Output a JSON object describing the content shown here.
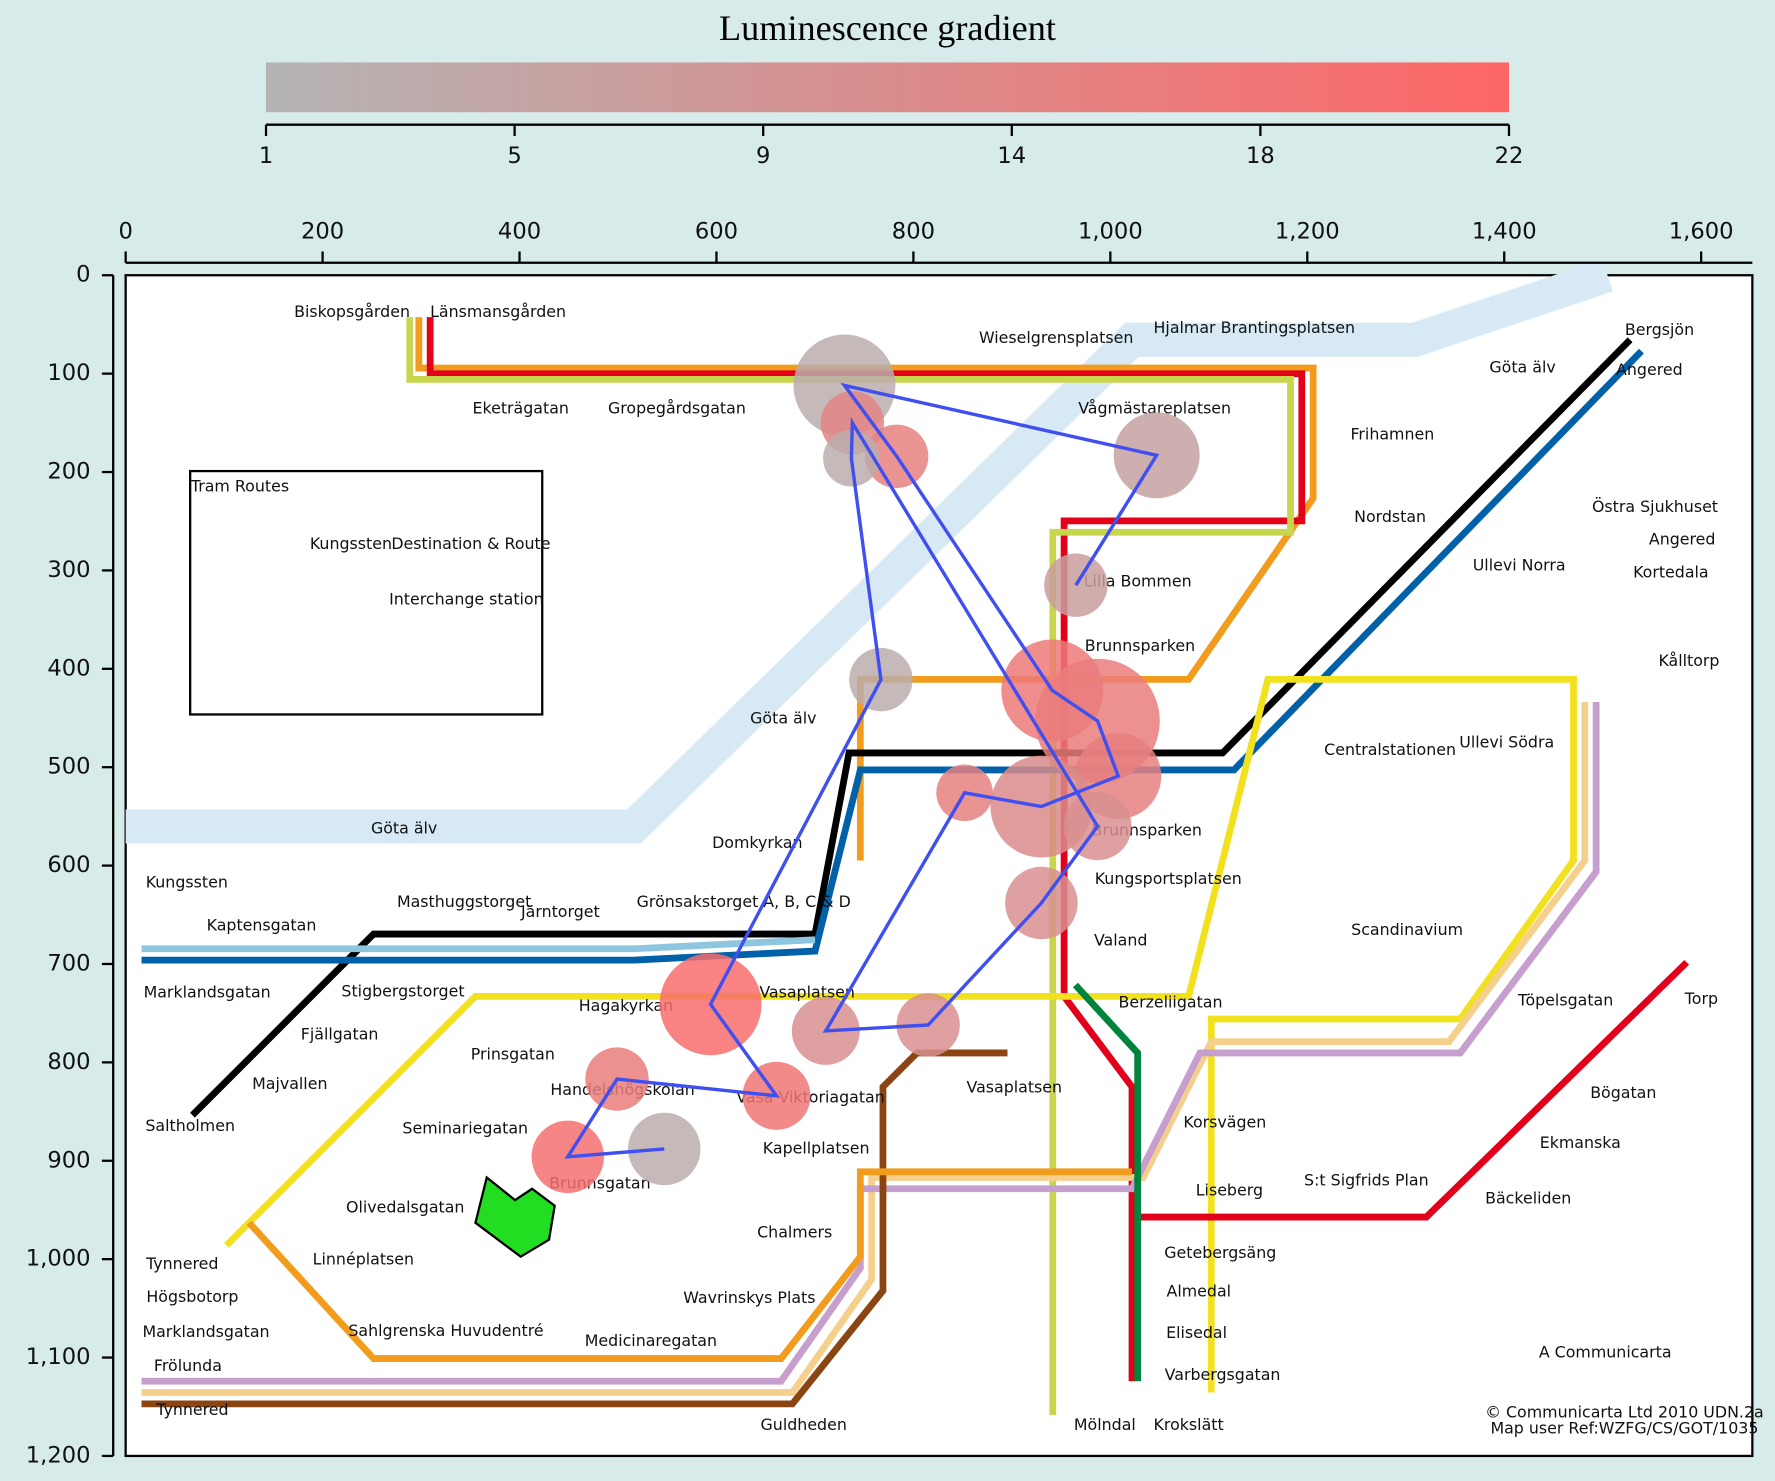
{
  "chart_data": {
    "type": "scatter",
    "title": "Luminescence gradient",
    "x": [
      965,
      1047,
      730,
      783,
      941,
      987,
      1008,
      930,
      852,
      711,
      815,
      930,
      987,
      738,
      737,
      767,
      594,
      661,
      499,
      449,
      547
    ],
    "y": [
      315,
      183,
      112,
      184,
      422,
      453,
      509,
      540,
      526,
      768,
      762,
      638,
      560,
      150,
      186,
      411,
      741,
      834,
      817,
      896,
      888
    ],
    "sizes": [
      56,
      76,
      90,
      56,
      90,
      110,
      76,
      90,
      50,
      60,
      56,
      64,
      60,
      56,
      50,
      56,
      90,
      60,
      56,
      64,
      64
    ],
    "values": [
      7,
      6,
      3,
      15,
      17,
      16,
      15,
      12,
      15,
      11,
      11,
      11,
      11,
      14,
      3,
      3,
      20,
      18,
      16,
      19,
      3
    ],
    "line_color": "#3f4ff0",
    "colormap": [
      "#b4b4b4",
      "#ff6666"
    ],
    "clim": [
      1,
      22
    ],
    "cticks": [
      1,
      {
        "value": 5.2,
        "label": "5"
      },
      {
        "value": 9.4,
        "label": "9"
      },
      {
        "value": 13.6,
        "label": "14"
      },
      {
        "value": 17.8,
        "label": "18"
      },
      22
    ],
    "xlim": [
      0,
      1652
    ],
    "xticks": [
      0,
      200,
      400,
      600,
      800,
      {
        "value": 1000,
        "label": "1,000"
      },
      {
        "value": 1200,
        "label": "1,200"
      },
      {
        "value": 1400,
        "label": "1,400"
      },
      {
        "value": 1600,
        "label": "1,600"
      }
    ],
    "ylim": [
      0,
      1200
    ],
    "yticks": [
      0,
      100,
      200,
      300,
      400,
      500,
      600,
      700,
      800,
      900,
      {
        "value": 1000,
        "label": "1,000"
      },
      {
        "value": 1100,
        "label": "1,100"
      },
      {
        "value": 1200,
        "label": "1,200"
      }
    ],
    "y_inverted": true
  },
  "map": {
    "labels": [
      "Biskopsgården",
      "Länsmansgården",
      "Eketrägatan",
      "Gropegårdsgatan",
      "Wieselgrensplatsen",
      "Hjalmar Brantingsplatsen",
      "Vågmästareplatsen",
      "Frihamnen",
      "Nordstan",
      "Lilla Bommen",
      "Brunnsparken",
      "Centralstationen",
      "Brunnsparken",
      "Kungsportsplatsen",
      "Valand",
      "Berzeliigatan",
      "Korsvägen",
      "Liseberg",
      "S:t Sigfrids Plan",
      "Bäckeliden",
      "Ekmanska",
      "Bögatan",
      "Töpelsgatan",
      "Scandinavium",
      "Ullevi Norra",
      "Ullevi Södra",
      "Östra Sjukhuset",
      "Angered",
      "Kortedala",
      "Kålltorp",
      "Bergsjön",
      "Angered",
      "Torp",
      "Getebergsäng",
      "Almedal",
      "Elisedal",
      "Varbergsgatan",
      "Mölndal",
      "Krokslätt",
      "Guldheden",
      "Domkyrkan",
      "Grönsakstorget A, B, C & D",
      "Vasaplatsen",
      "Vasaplatsen",
      "Vasa Viktoriagatan",
      "Kapellplatsen",
      "Chalmers",
      "Wavrinskys Plats",
      "Medicinaregatan",
      "Sahlgrenska Huvudentré",
      "Linnéplatsen",
      "Olivedalsgatan",
      "Seminariegatan",
      "Brunnsgatan",
      "Handelshögskolan",
      "Hagakyrkan",
      "Prinsgatan",
      "Stigbergstorget",
      "Masthuggstorget",
      "Järntorget",
      "Kaptensgatan",
      "Kungssten",
      "Marklandsgatan",
      "Fjällgatan",
      "Majvallen",
      "Saltholmen",
      "Tynnered",
      "Högsbotorp",
      "Marklandsgatan",
      "Frölunda",
      "Tynnered",
      "Göta älv",
      "Göta älv",
      "Göta älv",
      "Tram Routes",
      "Kungssten",
      "Destination & Route",
      "Interchange station",
      "A Communicarta",
      "© Communicarta Ltd 2010 UDN.2a",
      "Map user Ref:WZFG/CS/GOT/1035"
    ]
  }
}
